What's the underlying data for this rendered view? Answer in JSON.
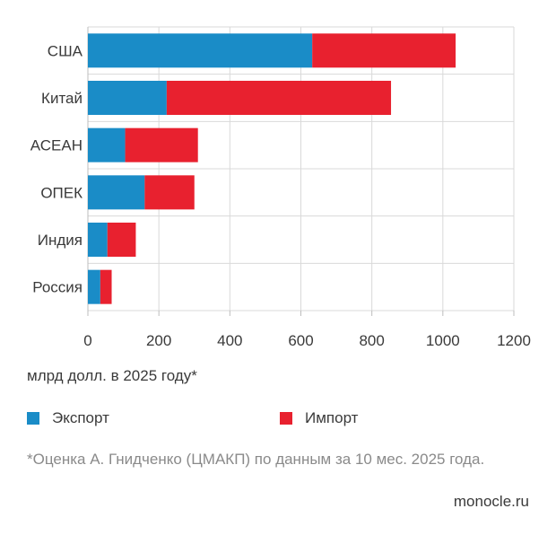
{
  "chart_data": {
    "type": "bar",
    "orientation": "horizontal",
    "stacked": true,
    "categories": [
      "США",
      "Китай",
      "АСЕАН",
      "ОПЕК",
      "Индия",
      "Россия"
    ],
    "series": [
      {
        "name": "Экспорт",
        "color": "#1a8cc7",
        "values": [
          632,
          222,
          105,
          160,
          55,
          35
        ]
      },
      {
        "name": "Импорт",
        "color": "#e8212f",
        "values": [
          404,
          632,
          205,
          140,
          80,
          32
        ]
      }
    ],
    "xlim": [
      0,
      1200
    ],
    "xticks": [
      0,
      200,
      400,
      600,
      800,
      1000,
      1200
    ],
    "xlabel": "млрд долл. в 2025 году*",
    "grid": true,
    "legend_position": "bottom"
  },
  "legend": {
    "export_label": "Экспорт",
    "import_label": "Импорт",
    "export_color": "#1a8cc7",
    "import_color": "#e8212f"
  },
  "footnote": "*Оценка А. Гнидченко (ЦМАКП) по данным за 10 мес. 2025 года.",
  "source": "monocle.ru"
}
